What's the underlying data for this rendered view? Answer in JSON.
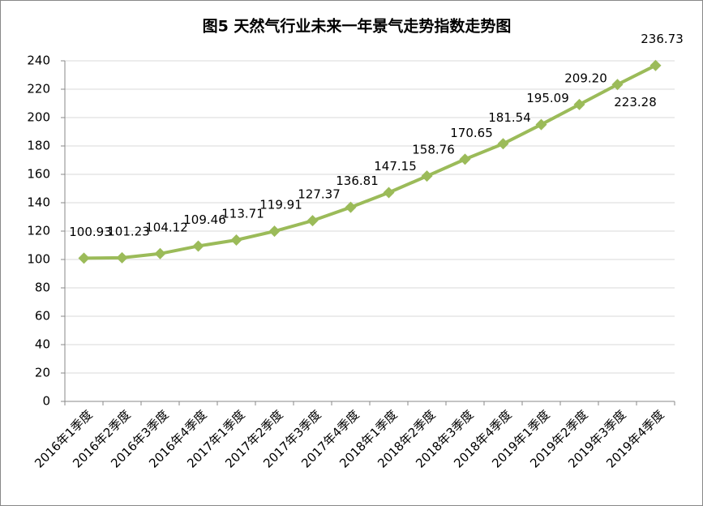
{
  "chart_data": {
    "type": "line",
    "title": "图5 天然气行业未来一年景气走势指数走势图",
    "categories": [
      "2016年1季度",
      "2016年2季度",
      "2016年3季度",
      "2016年4季度",
      "2017年1季度",
      "2017年2季度",
      "2017年3季度",
      "2017年4季度",
      "2018年1季度",
      "2018年2季度",
      "2018年3季度",
      "2018年4季度",
      "2019年1季度",
      "2019年2季度",
      "2019年3季度",
      "2019年4季度"
    ],
    "values": [
      100.93,
      101.23,
      104.12,
      109.46,
      113.71,
      119.91,
      127.37,
      136.81,
      147.15,
      158.76,
      170.65,
      181.54,
      195.09,
      209.2,
      223.28,
      236.73
    ],
    "value_labels": [
      "100.93",
      "101.23",
      "104.12",
      "109.46",
      "113.71",
      "119.91",
      "127.37",
      "136.81",
      "147.15",
      "158.76",
      "170.65",
      "181.54",
      "195.09",
      "209.20",
      "223.28",
      "236.73"
    ],
    "color": "#9bbb59",
    "ylim": [
      0,
      240
    ],
    "yticks": [
      0,
      20,
      40,
      60,
      80,
      100,
      120,
      140,
      160,
      180,
      200,
      220,
      240
    ],
    "grid": true
  }
}
